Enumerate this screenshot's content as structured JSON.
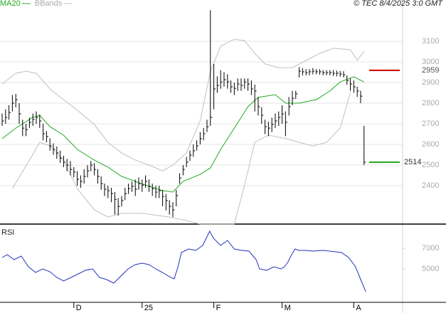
{
  "chart_data": [
    {
      "type": "ohlc",
      "credit": "© TEC 8/4/2025 3:0 GMT",
      "bar_color": "#000000",
      "grid": true,
      "xlim": [
        -0.625,
        117.3
      ],
      "ylim": [
        2214,
        3300
      ],
      "yticks": [
        2400,
        2500,
        2600,
        2700,
        2800,
        2900,
        3000,
        3100
      ],
      "high": [
        2750,
        2770,
        2790,
        2840,
        2845,
        2800,
        2720,
        2700,
        2730,
        2750,
        2760,
        2745,
        2700,
        2665,
        2630,
        2605,
        2590,
        2570,
        2545,
        2530,
        2520,
        2490,
        2470,
        2450,
        2480,
        2500,
        2520,
        2510,
        2480,
        2445,
        2410,
        2400,
        2390,
        2370,
        2340,
        2350,
        2390,
        2410,
        2420,
        2430,
        2440,
        2430,
        2450,
        2430,
        2410,
        2400,
        2400,
        2380,
        2360,
        2330,
        2320,
        2380,
        2460,
        2500,
        2540,
        2570,
        2600,
        2620,
        2660,
        2680,
        2720,
        3250,
        2990,
        2930,
        2960,
        2950,
        2940,
        2910,
        2900,
        2920,
        2920,
        2920,
        2920,
        2910,
        2890,
        2830,
        2780,
        2720,
        2710,
        2730,
        2750,
        2760,
        2790,
        2760,
        2830,
        2860,
        2860,
        2975,
        2970,
        2965,
        2965,
        2970,
        2965,
        2965,
        2960,
        2960,
        2960,
        2960,
        2958,
        2956,
        2955,
        2935,
        2920,
        2910,
        2880,
        2860,
        2690
      ],
      "low": [
        2690,
        2700,
        2720,
        2760,
        2780,
        2700,
        2640,
        2640,
        2680,
        2690,
        2700,
        2680,
        2620,
        2610,
        2570,
        2550,
        2530,
        2510,
        2490,
        2470,
        2450,
        2440,
        2400,
        2390,
        2410,
        2440,
        2470,
        2450,
        2410,
        2380,
        2350,
        2340,
        2320,
        2260,
        2255,
        2300,
        2330,
        2360,
        2370,
        2350,
        2380,
        2370,
        2390,
        2370,
        2350,
        2340,
        2340,
        2300,
        2280,
        2260,
        2248,
        2300,
        2410,
        2450,
        2490,
        2520,
        2540,
        2570,
        2600,
        2620,
        2660,
        2690,
        2770,
        2850,
        2870,
        2880,
        2870,
        2850,
        2840,
        2860,
        2860,
        2870,
        2860,
        2840,
        2760,
        2740,
        2700,
        2650,
        2640,
        2660,
        2680,
        2690,
        2700,
        2640,
        2740,
        2790,
        2820,
        2925,
        2935,
        2935,
        2935,
        2940,
        2940,
        2938,
        2935,
        2935,
        2935,
        2932,
        2930,
        2928,
        2925,
        2890,
        2860,
        2850,
        2830,
        2800,
        2500
      ],
      "close": [
        2714,
        2731,
        2755,
        2800,
        2817,
        2748,
        2679,
        2672,
        2707,
        2721,
        2731,
        2714,
        2652,
        2638,
        2593,
        2576,
        2559,
        2534,
        2514,
        2500,
        2479,
        2466,
        2431,
        2421,
        2445,
        2472,
        2500,
        2479,
        2445,
        2410,
        2383,
        2376,
        2362,
        2334,
        2300,
        2328,
        2362,
        2386,
        2397,
        2383,
        2410,
        2403,
        2421,
        2397,
        2386,
        2369,
        2376,
        2348,
        2328,
        2300,
        2283,
        2352,
        2438,
        2479,
        2514,
        2548,
        2569,
        2593,
        2628,
        2652,
        2686,
        2731,
        2869,
        2886,
        2903,
        2914,
        2903,
        2879,
        2872,
        2893,
        2886,
        2903,
        2893,
        2869,
        2859,
        2783,
        2741,
        2686,
        2679,
        2697,
        2714,
        2731,
        2748,
        2707,
        2783,
        2824,
        2845,
        2955,
        2952,
        2948,
        2952,
        2955,
        2952,
        2952,
        2948,
        2948,
        2948,
        2945,
        2945,
        2941,
        2938,
        2910,
        2893,
        2879,
        2859,
        2834,
        2514
      ],
      "series": [
        {
          "name": "MA20",
          "color": "#22aa22",
          "x": [
            0,
            4,
            9,
            11,
            14,
            18,
            22,
            27,
            31,
            35,
            39,
            43,
            47,
            50,
            53,
            58,
            61,
            64,
            68,
            72,
            75,
            80,
            83,
            87,
            92,
            96,
            99,
            103,
            106
          ],
          "values": [
            2628,
            2679,
            2731,
            2741,
            2686,
            2645,
            2576,
            2524,
            2490,
            2445,
            2421,
            2397,
            2376,
            2369,
            2421,
            2455,
            2486,
            2576,
            2679,
            2783,
            2828,
            2841,
            2800,
            2800,
            2817,
            2859,
            2903,
            2928,
            2903
          ]
        },
        {
          "name": "BBands",
          "color": "#c0c0c0",
          "x": [
            0,
            4,
            7,
            10,
            14,
            18,
            22,
            27,
            31,
            35,
            39,
            43,
            47,
            50,
            54,
            58,
            61,
            64,
            68,
            71,
            74,
            77,
            81,
            85,
            89,
            93,
            97,
            102,
            104,
            106
          ],
          "values": [
            2893,
            2945,
            2955,
            2945,
            2869,
            2817,
            2766,
            2697,
            2610,
            2559,
            2524,
            2500,
            2472,
            2500,
            2559,
            2714,
            2955,
            3076,
            3110,
            3103,
            3041,
            2990,
            2972,
            2972,
            3007,
            3041,
            3066,
            3059,
            3007,
            3052
          ]
        },
        {
          "color": "#c0c0c0",
          "x": [
            3,
            8,
            11,
            14,
            18,
            22,
            27,
            31,
            35,
            41,
            49,
            54,
            58,
            68,
            71,
            74,
            78,
            83,
            87,
            91,
            95,
            99,
            102
          ],
          "values": [
            2386,
            2524,
            2610,
            2593,
            2524,
            2386,
            2283,
            2248,
            2266,
            2266,
            2248,
            2231,
            2214,
            2214,
            2403,
            2610,
            2645,
            2628,
            2610,
            2593,
            2610,
            2679,
            2852
          ]
        }
      ],
      "levels": [
        {
          "value": 2959,
          "color": "#cc0000"
        },
        {
          "value": 2514,
          "color": "#22aa22"
        }
      ]
    },
    {
      "type": "line",
      "title": "RSI",
      "xlim": [
        -0.625,
        117.3
      ],
      "ylim": [
        1760,
        9140
      ],
      "yticks": [
        5000,
        7000
      ],
      "xticks": [
        {
          "value": 21,
          "label": "D"
        },
        {
          "value": 41,
          "label": "25"
        },
        {
          "value": 62,
          "label": "F"
        },
        {
          "value": 82,
          "label": "M"
        },
        {
          "value": 103,
          "label": "A"
        }
      ],
      "series": [
        {
          "color": "#2233bb",
          "x": [
            0,
            1.5,
            3.5,
            5.6,
            7.7,
            9.8,
            11.9,
            14,
            16,
            18,
            20.2,
            22.3,
            24.4,
            26.5,
            28.5,
            30.6,
            32.7,
            34.8,
            36.9,
            39,
            41,
            43,
            45,
            47.3,
            49.4,
            50.4,
            51.5,
            52.5,
            54.6,
            56.7,
            58.75,
            60.8,
            61.9,
            64,
            66,
            68,
            70.2,
            72.3,
            74.4,
            75.4,
            77.5,
            79.6,
            81.7,
            82.7,
            83.75,
            84.8,
            85.8,
            86.9,
            89,
            91,
            94,
            96,
            99.4,
            101.5,
            103.5,
            105.2,
            106.5
          ],
          "values": [
            6103,
            6379,
            5896,
            6241,
            5206,
            4654,
            4999,
            4723,
            4171,
            3826,
            4171,
            4516,
            4861,
            4999,
            4171,
            3964,
            3619,
            4309,
            4999,
            5413,
            5551,
            5413,
            4999,
            4585,
            4171,
            4033,
            5206,
            6586,
            6931,
            6793,
            7276,
            8656,
            7966,
            7276,
            7759,
            6931,
            6793,
            6724,
            5896,
            4999,
            4861,
            5206,
            4999,
            5206,
            5689,
            6379,
            6931,
            6793,
            6793,
            6724,
            6793,
            6724,
            6586,
            6103,
            5206,
            3826,
            2791
          ]
        }
      ]
    }
  ]
}
